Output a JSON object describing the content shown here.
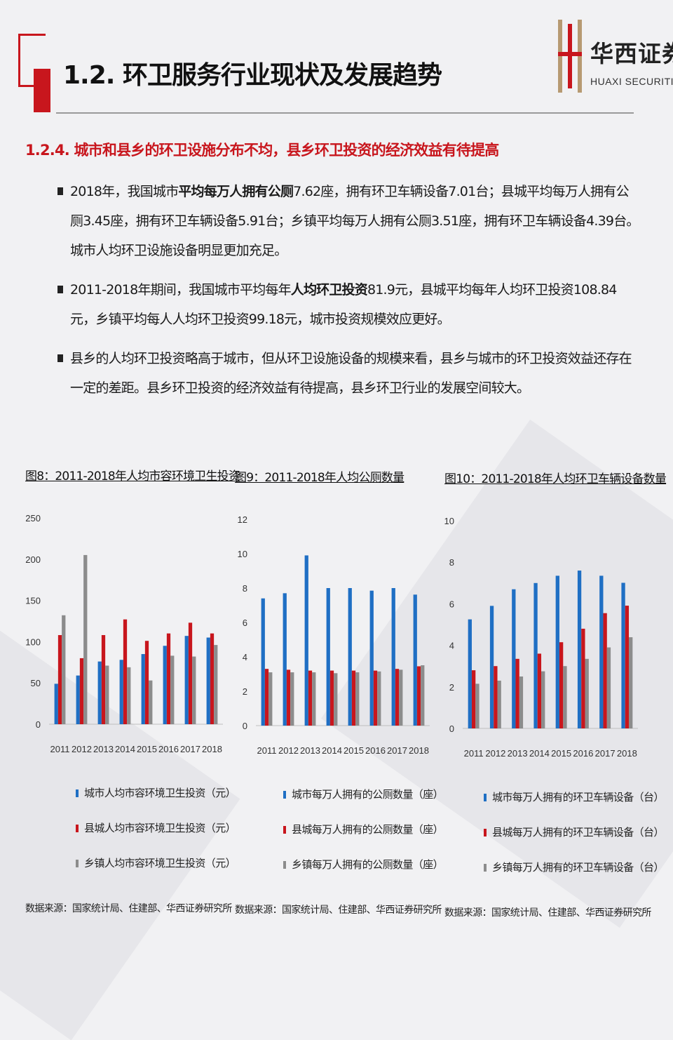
{
  "header": {
    "title": "1.2. 环卫服务行业现状及发展趋势",
    "logo_cn": "华西证券",
    "logo_en": "HUAXI SECURITIES"
  },
  "section_title": "1.2.4. 城市和县乡的环卫设施分布不均，县乡环卫投资的经济效益有待提高",
  "bullets": [
    {
      "before": "2018年，我国城市",
      "bold": "平均每万人拥有公厕",
      "after": "7.62座，拥有环卫车辆设备7.01台；县城平均每万人拥有公厕3.45座，拥有环卫车辆设备5.91台；乡镇平均每万人拥有公厕3.51座，拥有环卫车辆设备4.39台。城市人均环卫设施设备明显更加充足。"
    },
    {
      "before": "2011-2018年期间，我国城市平均每年",
      "bold": "人均环卫投资",
      "after": "81.9元，县城平均每年人均环卫投资108.84元，乡镇平均每人人均环卫投资99.18元，城市投资规模效应更好。"
    },
    {
      "before": "县乡的人均环卫投资略高于城市，但从环卫设施设备的规模来看，县乡与城市的环卫投资效益还存在一定的差距。县乡环卫投资的经济效益有待提高，县乡环卫行业的发展空间较大。",
      "bold": "",
      "after": ""
    }
  ],
  "colors": {
    "city": "#1f6fc4",
    "county": "#c8161d",
    "town": "#8c8c8c",
    "accent": "#c8161d"
  },
  "chart_data": [
    {
      "type": "bar",
      "title": "图8：2011-2018年人均市容环境卫生投资",
      "categories": [
        "2011",
        "2012",
        "2013",
        "2014",
        "2015",
        "2016",
        "2017",
        "2018"
      ],
      "ylim": [
        0,
        250
      ],
      "yticks": [
        0,
        50,
        100,
        150,
        200,
        250
      ],
      "series": [
        {
          "name": "城市人均市容环境卫生投资（元）",
          "values": [
            49,
            59,
            76,
            78,
            85,
            95,
            107,
            105
          ]
        },
        {
          "name": "县城人均市容环境卫生投资（元）",
          "values": [
            108,
            80,
            108,
            127,
            101,
            110,
            123,
            110
          ]
        },
        {
          "name": "乡镇人均市容环境卫生投资（元）",
          "values": [
            132,
            205,
            71,
            69,
            53,
            83,
            82,
            96
          ]
        }
      ],
      "legend": "bottom",
      "source": "数据来源：国家统计局、住建部、华西证券研究所"
    },
    {
      "type": "bar",
      "title": "图9：2011-2018年人均公厕数量",
      "categories": [
        "2011",
        "2012",
        "2013",
        "2014",
        "2015",
        "2016",
        "2017",
        "2018"
      ],
      "ylim": [
        0,
        12
      ],
      "yticks": [
        0,
        2,
        4,
        6,
        8,
        10,
        12
      ],
      "series": [
        {
          "name": "城市每万人拥有的公厕数量（座）",
          "values": [
            7.4,
            7.7,
            9.9,
            8.0,
            8.0,
            7.85,
            8.0,
            7.62
          ]
        },
        {
          "name": "县城每万人拥有的公厕数量（座）",
          "values": [
            3.3,
            3.25,
            3.2,
            3.2,
            3.2,
            3.2,
            3.3,
            3.45
          ]
        },
        {
          "name": "乡镇每万人拥有的公厕数量（座）",
          "values": [
            3.1,
            3.1,
            3.1,
            3.05,
            3.1,
            3.15,
            3.25,
            3.51
          ]
        }
      ],
      "legend": "bottom",
      "source": "数据来源：国家统计局、住建部、华西证券研究所"
    },
    {
      "type": "bar",
      "title": "图10：2011-2018年人均环卫车辆设备数量",
      "categories": [
        "2011",
        "2012",
        "2013",
        "2014",
        "2015",
        "2016",
        "2017",
        "2018"
      ],
      "ylim": [
        0,
        10
      ],
      "yticks": [
        0,
        2,
        4,
        6,
        8,
        10
      ],
      "series": [
        {
          "name": "城市每万人拥有的环卫车辆设备（台）",
          "values": [
            5.25,
            5.9,
            6.7,
            7.0,
            7.35,
            7.6,
            7.35,
            7.01
          ]
        },
        {
          "name": "县城每万人拥有的环卫车辆设备（台）",
          "values": [
            2.8,
            3.0,
            3.35,
            3.6,
            4.15,
            4.8,
            5.55,
            5.91
          ]
        },
        {
          "name": "乡镇每万人拥有的环卫车辆设备（台）",
          "values": [
            2.15,
            2.3,
            2.5,
            2.75,
            3.0,
            3.35,
            3.9,
            4.39
          ]
        }
      ],
      "legend": "bottom",
      "source": "数据来源：国家统计局、住建部、华西证券研究所"
    }
  ]
}
